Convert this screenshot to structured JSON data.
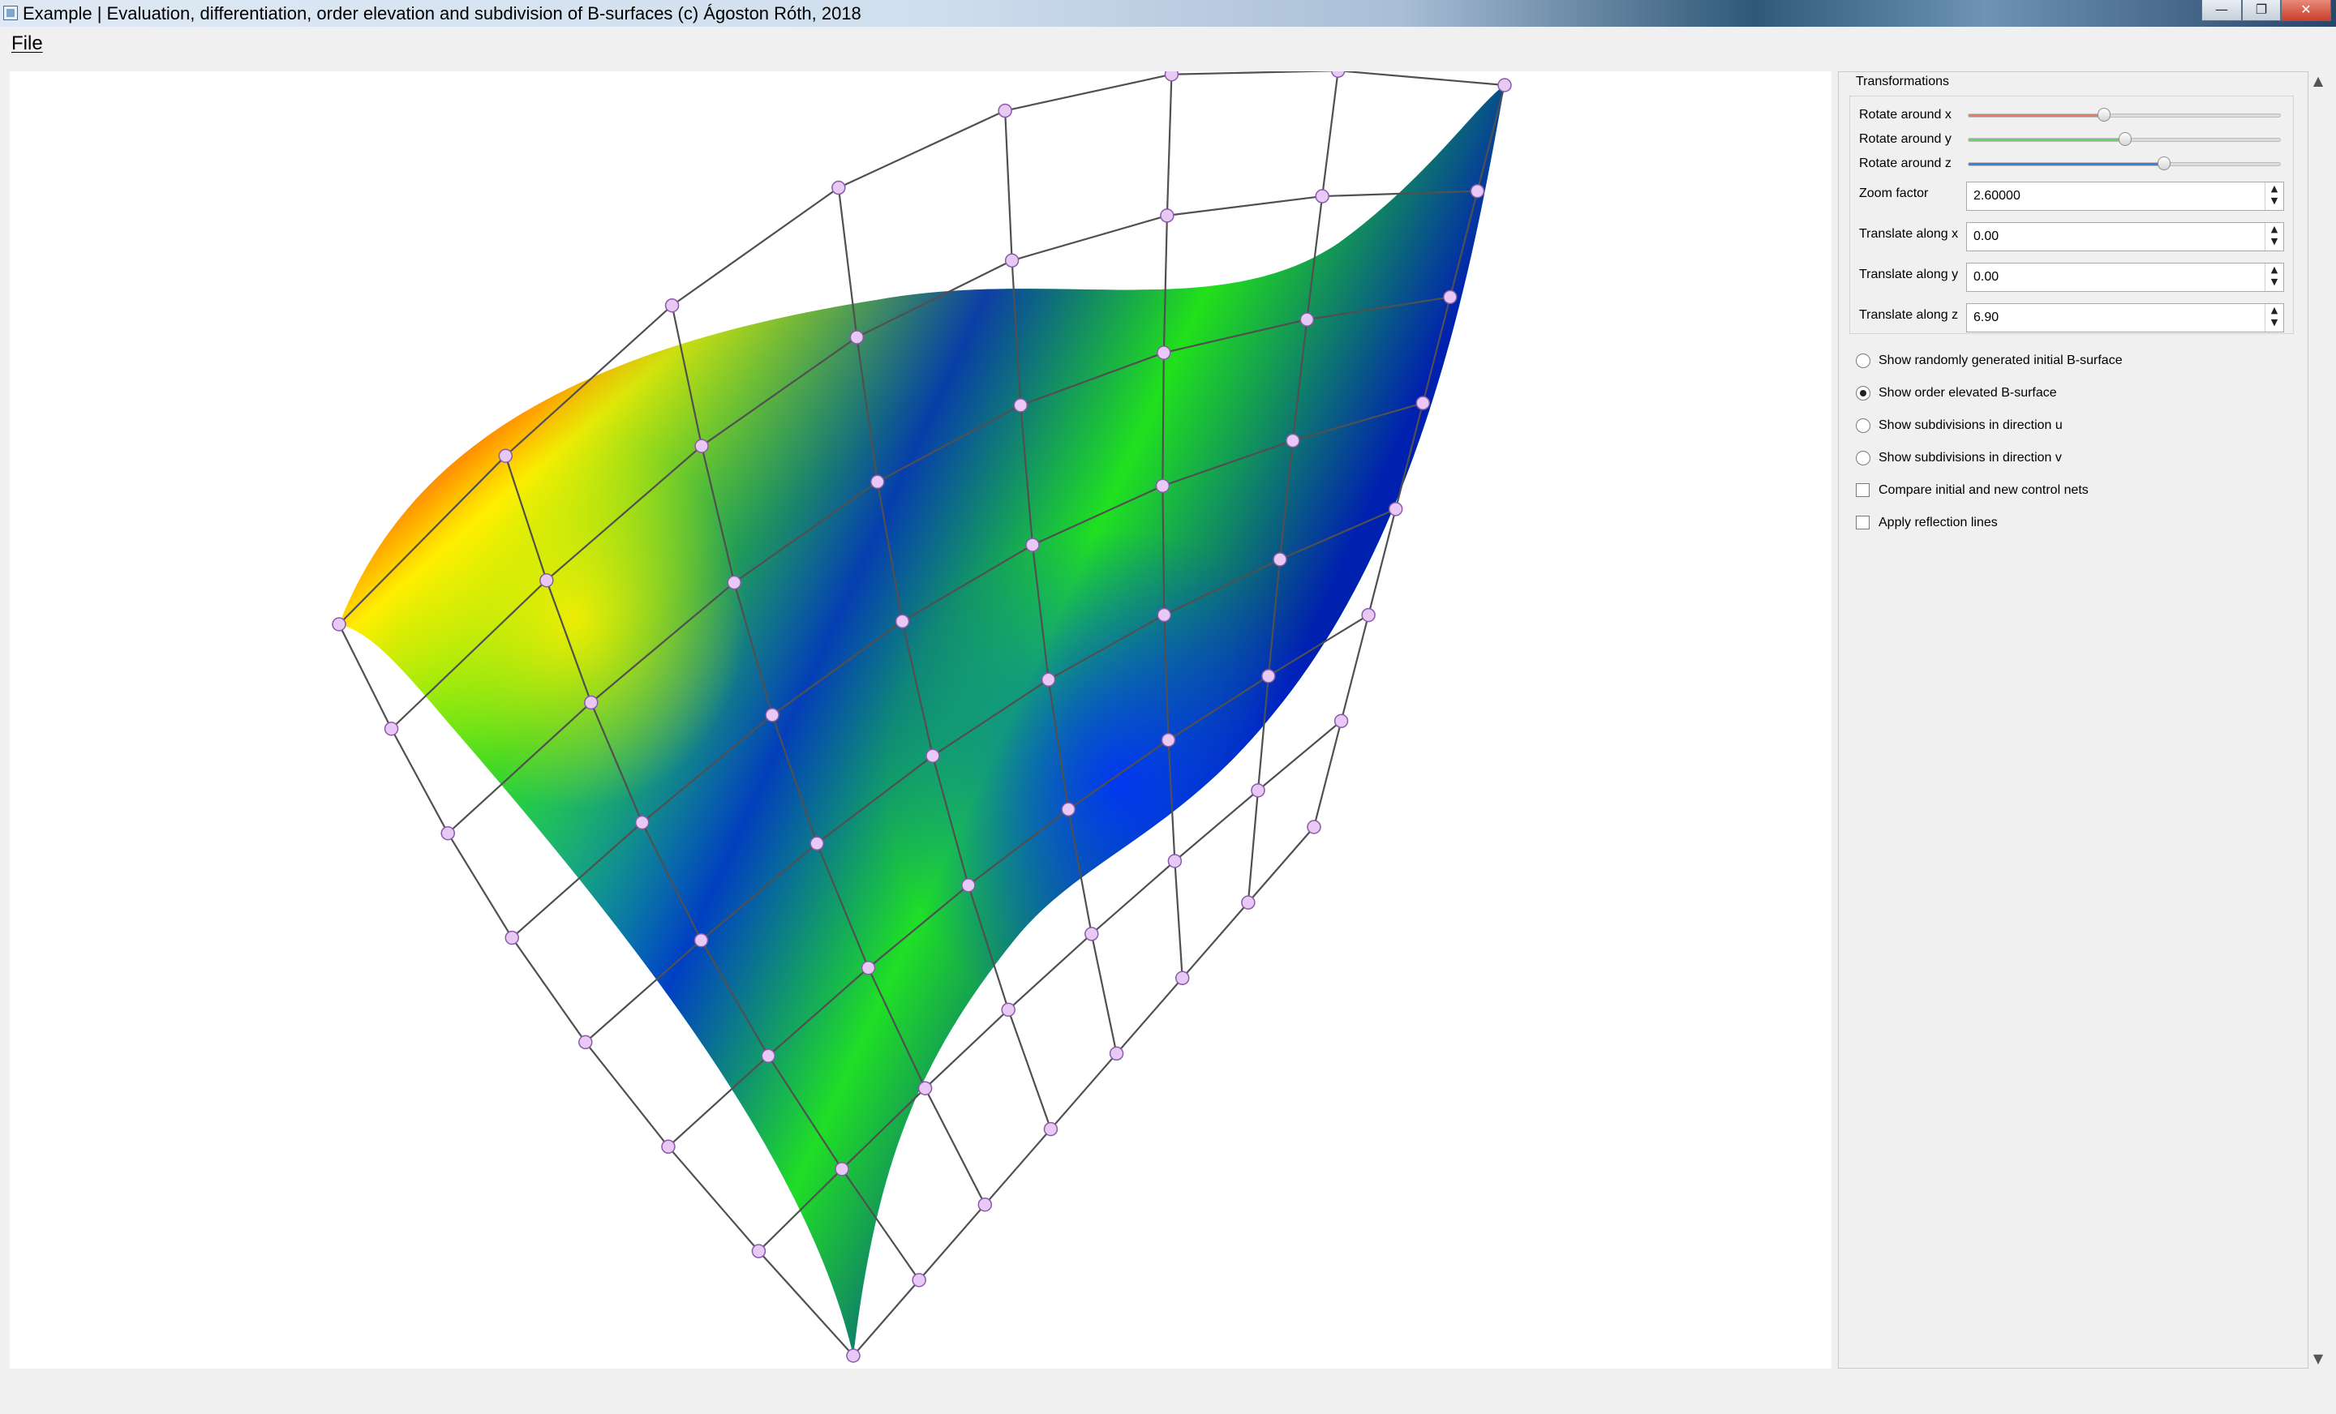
{
  "window": {
    "title": "Example | Evaluation, differentiation, order elevation and subdivision of B-surfaces (c) Ágoston Róth, 2018",
    "controls": {
      "minimize": "—",
      "maximize": "❐",
      "close": "✕"
    }
  },
  "menu": {
    "file": "File"
  },
  "panel": {
    "group_title": "Transformations",
    "rotate_x": {
      "label": "Rotate around x",
      "value_fraction": 0.43,
      "color": "#e87a6a"
    },
    "rotate_y": {
      "label": "Rotate around y",
      "value_fraction": 0.5,
      "color": "#6ad06a"
    },
    "rotate_z": {
      "label": "Rotate around z",
      "value_fraction": 0.63,
      "color": "#3a7ee0"
    },
    "zoom": {
      "label": "Zoom factor",
      "value": "2.60000"
    },
    "translate_x": {
      "label": "Translate along x",
      "value": "0.00"
    },
    "translate_y": {
      "label": "Translate along y",
      "value": "0.00"
    },
    "translate_z": {
      "label": "Translate along z",
      "value": "6.90"
    },
    "options": [
      {
        "label": "Show randomly generated initial B-surface",
        "type": "radio",
        "checked": false
      },
      {
        "label": "Show order elevated B-surface",
        "type": "radio",
        "checked": true
      },
      {
        "label": "Show subdivisions in direction u",
        "type": "radio",
        "checked": false
      },
      {
        "label": "Show subdivisions in direction v",
        "type": "radio",
        "checked": false
      },
      {
        "label": "Compare initial and new control nets",
        "type": "checkbox",
        "checked": false
      },
      {
        "label": "Apply reflection lines",
        "type": "checkbox",
        "checked": false
      }
    ]
  }
}
